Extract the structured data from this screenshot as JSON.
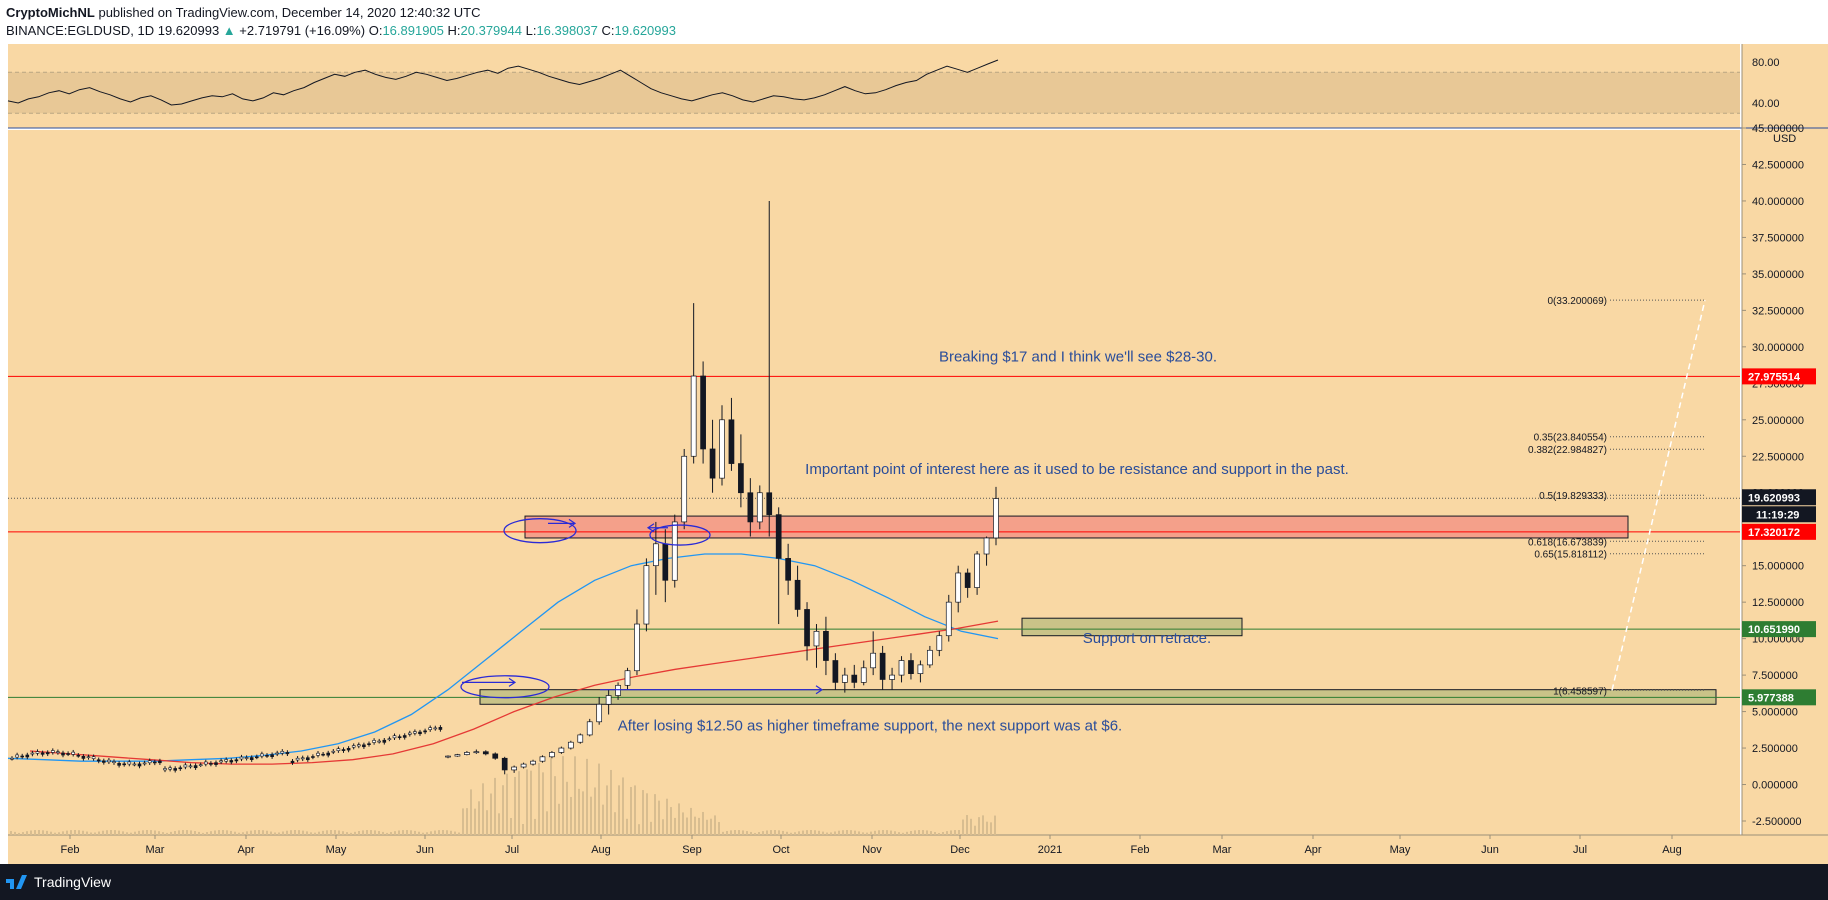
{
  "header": {
    "publisher": "CryptoMichNL",
    "published_text": "published on TradingView.com, December 14, 2020 12:40:32 UTC",
    "symbol": "BINANCE:EGLDUSD, 1D",
    "last": "19.620993",
    "change": "+2.719791 (+16.09%)",
    "o_label": "O:",
    "o_value": "16.891905",
    "h_label": "H:",
    "h_value": "20.379944",
    "l_label": "L:",
    "l_value": "16.398037",
    "c_label": "C:",
    "c_value": "19.620993"
  },
  "footer": {
    "brand": "TradingView"
  },
  "colors": {
    "background": "#f9d8a4",
    "up": "#26a69a",
    "red_line": "#ff0000",
    "green_line": "#2e7d32",
    "ma_blue": "#2196f3",
    "ma_red": "#e53935",
    "resistance_zone": "#f4a08a",
    "support_zone": "#c9c388",
    "annotation_text": "#2a4d9a",
    "badge_red": "#ff0000",
    "badge_green": "#2e7d32",
    "badge_dark": "#131722"
  },
  "chart_data": {
    "type": "candlestick",
    "symbol": "BINANCE:EGLDUSD",
    "interval": "1D",
    "price_axis_unit": "USD",
    "price_ticks": [
      "45.000000",
      "42.500000",
      "40.000000",
      "37.500000",
      "35.000000",
      "32.500000",
      "30.000000",
      "27.500000",
      "25.000000",
      "22.500000",
      "20.000000",
      "17.500000",
      "15.000000",
      "12.500000",
      "10.000000",
      "7.500000",
      "5.000000",
      "2.500000",
      "0.000000",
      "-2.500000"
    ],
    "time_ticks": [
      "Feb",
      "Mar",
      "Apr",
      "May",
      "Jun",
      "Jul",
      "Aug",
      "Sep",
      "Oct",
      "Nov",
      "Dec",
      "2021",
      "Feb",
      "Mar",
      "Apr",
      "May",
      "Jun",
      "Jul",
      "Aug"
    ],
    "rsi": {
      "ticks": [
        "80.00",
        "40.00"
      ],
      "series": [
        42,
        40,
        44,
        46,
        50,
        52,
        49,
        53,
        55,
        51,
        48,
        44,
        41,
        45,
        47,
        43,
        38,
        39,
        42,
        45,
        47,
        46,
        49,
        44,
        42,
        45,
        50,
        48,
        52,
        55,
        60,
        64,
        68,
        66,
        70,
        72,
        68,
        65,
        63,
        66,
        70,
        68,
        65,
        62,
        64,
        67,
        70,
        72,
        69,
        74,
        76,
        73,
        70,
        66,
        63,
        60,
        58,
        61,
        64,
        68,
        72,
        66,
        60,
        54,
        50,
        47,
        44,
        42,
        45,
        48,
        50,
        47,
        43,
        41,
        44,
        47,
        46,
        44,
        43,
        45,
        48,
        52,
        56,
        52,
        49,
        50,
        53,
        57,
        60,
        62,
        68,
        72,
        76,
        73,
        70,
        74,
        78,
        82
      ]
    },
    "candles_approx": [
      [
        1.9,
        2.0,
        1.8,
        1.95
      ],
      [
        1.95,
        2.1,
        1.9,
        2.05
      ],
      [
        2.05,
        2.3,
        2.0,
        2.2
      ],
      [
        2.2,
        2.4,
        2.1,
        2.25
      ],
      [
        2.25,
        2.35,
        2.0,
        2.1
      ],
      [
        2.1,
        2.2,
        1.7,
        1.8
      ],
      [
        1.8,
        1.9,
        0.7,
        1.0
      ],
      [
        1.0,
        1.3,
        0.8,
        1.2
      ],
      [
        1.2,
        1.5,
        1.1,
        1.4
      ],
      [
        1.4,
        1.7,
        1.3,
        1.6
      ],
      [
        1.6,
        2.0,
        1.5,
        1.9
      ],
      [
        1.9,
        2.3,
        1.8,
        2.2
      ],
      [
        2.2,
        2.6,
        2.1,
        2.5
      ],
      [
        2.5,
        3.0,
        2.4,
        2.9
      ],
      [
        2.9,
        3.5,
        2.8,
        3.4
      ],
      [
        3.4,
        4.5,
        3.3,
        4.3
      ],
      [
        4.3,
        6.0,
        4.1,
        5.5
      ],
      [
        5.5,
        6.5,
        4.8,
        6.1
      ],
      [
        6.1,
        7.0,
        5.8,
        6.8
      ],
      [
        6.8,
        8.0,
        6.5,
        7.8
      ],
      [
        7.8,
        12.0,
        7.5,
        11.0
      ],
      [
        11.0,
        15.5,
        10.5,
        15.0
      ],
      [
        15.0,
        18.0,
        13.0,
        16.5
      ],
      [
        16.5,
        17.5,
        12.5,
        14.0
      ],
      [
        14.0,
        18.5,
        13.5,
        18.0
      ],
      [
        18.0,
        23.0,
        17.5,
        22.5
      ],
      [
        22.5,
        33.0,
        22.0,
        28.0
      ],
      [
        28.0,
        29.0,
        22.0,
        23.0
      ],
      [
        23.0,
        25.0,
        20.0,
        21.0
      ],
      [
        21.0,
        26.0,
        20.5,
        25.0
      ],
      [
        25.0,
        26.5,
        21.5,
        22.0
      ],
      [
        22.0,
        24.0,
        19.0,
        20.0
      ],
      [
        20.0,
        21.0,
        17.0,
        18.0
      ],
      [
        18.0,
        20.5,
        17.5,
        20.0
      ],
      [
        20.0,
        40.0,
        17.0,
        18.5
      ],
      [
        18.5,
        19.0,
        11.0,
        15.5
      ],
      [
        15.5,
        16.5,
        13.0,
        14.0
      ],
      [
        14.0,
        15.0,
        11.5,
        12.0
      ],
      [
        12.0,
        12.5,
        8.5,
        9.5
      ],
      [
        9.5,
        11.0,
        8.0,
        10.5
      ],
      [
        10.5,
        11.5,
        7.5,
        8.5
      ],
      [
        8.5,
        9.0,
        6.5,
        7.0
      ],
      [
        7.0,
        8.0,
        6.3,
        7.5
      ],
      [
        7.5,
        8.2,
        6.6,
        7.0
      ],
      [
        7.0,
        8.5,
        6.8,
        8.0
      ],
      [
        8.0,
        10.5,
        7.5,
        9.0
      ],
      [
        9.0,
        9.5,
        6.5,
        7.2
      ],
      [
        7.2,
        8.0,
        6.5,
        7.5
      ],
      [
        7.5,
        8.8,
        7.0,
        8.5
      ],
      [
        8.5,
        9.0,
        7.2,
        7.6
      ],
      [
        7.6,
        8.5,
        7.0,
        8.2
      ],
      [
        8.2,
        9.5,
        8.0,
        9.2
      ],
      [
        9.2,
        10.5,
        8.8,
        10.2
      ],
      [
        10.2,
        13.0,
        9.8,
        12.5
      ],
      [
        12.5,
        15.0,
        11.8,
        14.5
      ],
      [
        14.5,
        14.8,
        12.8,
        13.5
      ],
      [
        13.5,
        16.0,
        13.0,
        15.8
      ],
      [
        15.8,
        17.0,
        15.0,
        16.9
      ],
      [
        16.9,
        20.4,
        16.4,
        19.6
      ]
    ],
    "ma_blue_approx": [
      1.8,
      1.7,
      1.6,
      1.6,
      1.6,
      1.7,
      1.8,
      2.0,
      2.3,
      2.8,
      3.6,
      4.8,
      6.5,
      8.5,
      10.5,
      12.5,
      14.0,
      15.0,
      15.5,
      15.8,
      15.8,
      15.5,
      15.0,
      14.0,
      12.8,
      11.5,
      10.5,
      10.0
    ],
    "ma_red_approx": [
      2.3,
      2.1,
      1.9,
      1.7,
      1.5,
      1.4,
      1.4,
      1.5,
      1.7,
      2.1,
      2.8,
      3.8,
      5.0,
      6.0,
      6.8,
      7.4,
      7.9,
      8.3,
      8.7,
      9.1,
      9.5,
      9.9,
      10.3,
      10.7,
      11.2
    ],
    "horizontal_levels": [
      {
        "label": "27.975514",
        "value": 27.975514,
        "color": "red"
      },
      {
        "label": "17.320172",
        "value": 17.320172,
        "color": "red"
      },
      {
        "label": "10.651990",
        "value": 10.65199,
        "color": "green"
      },
      {
        "label": "5.977388",
        "value": 5.977388,
        "color": "green"
      }
    ],
    "last_price_badge": "19.620993",
    "countdown_badge": "11:19:29",
    "fib_levels": [
      {
        "label": "0(33.200069)",
        "value": 33.200069
      },
      {
        "label": "0.35(23.840554)",
        "value": 23.840554
      },
      {
        "label": "0.382(22.984827)",
        "value": 22.984827
      },
      {
        "label": "0.5(19.829333)",
        "value": 19.829333
      },
      {
        "label": "0.618(16.673839)",
        "value": 16.673839
      },
      {
        "label": "0.65(15.818112)",
        "value": 15.818112
      },
      {
        "label": "1(6.458597)",
        "value": 6.458597
      }
    ],
    "zones": [
      {
        "type": "resistance",
        "top": 18.4,
        "bottom": 16.9
      },
      {
        "type": "support",
        "top": 11.4,
        "bottom": 10.2
      },
      {
        "type": "support",
        "top": 6.5,
        "bottom": 5.5
      }
    ],
    "annotations": [
      "Breaking $17 and I think we'll see $28-30.",
      "Important point of interest here as it used to be resistance and support in the past.",
      "Support on retrace.",
      "After losing $12.50 as higher timeframe support, the next support was at $6."
    ]
  }
}
